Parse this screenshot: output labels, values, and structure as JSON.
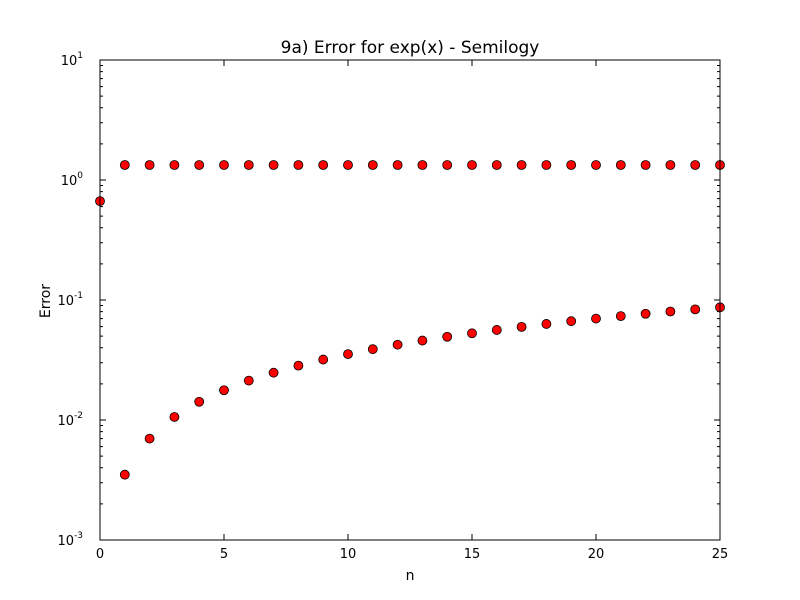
{
  "chart_data": {
    "type": "scatter",
    "title": "9a) Error for exp(x) - Semilogy",
    "xlabel": "n",
    "ylabel": "Error",
    "xlim": [
      0,
      25
    ],
    "ylim": [
      0.001,
      10
    ],
    "yscale": "log",
    "x_ticks": [
      "0",
      "5",
      "10",
      "15",
      "20",
      "25"
    ],
    "y_ticks": [
      {
        "base": "10",
        "exp": "-3"
      },
      {
        "base": "10",
        "exp": "-2"
      },
      {
        "base": "10",
        "exp": "-1"
      },
      {
        "base": "10",
        "exp": "0"
      },
      {
        "base": "10",
        "exp": "1"
      }
    ],
    "grid": false,
    "marker_color": "#ff0000",
    "marker_edge_color": "#000000",
    "series": [
      {
        "x": [
          0,
          1,
          2,
          3,
          4,
          5,
          6,
          7,
          8,
          9,
          10,
          11,
          12,
          13,
          14,
          15,
          16,
          17,
          18,
          19,
          20,
          21,
          22,
          23,
          24,
          25
        ],
        "y": [
          0.6667,
          1.333,
          1.333,
          1.333,
          1.333,
          1.333,
          1.333,
          1.333,
          1.333,
          1.333,
          1.333,
          1.333,
          1.333,
          1.333,
          1.333,
          1.333,
          1.333,
          1.333,
          1.333,
          1.333,
          1.333,
          1.333,
          1.333,
          1.333,
          1.333,
          1.333
        ]
      },
      {
        "x": [
          1,
          2,
          3,
          4,
          5,
          6,
          7,
          8,
          9,
          10,
          11,
          12,
          13,
          14,
          15,
          16,
          17,
          18,
          19,
          20,
          21,
          22,
          23,
          24,
          25
        ],
        "y": [
          0.0035,
          0.007,
          0.0106,
          0.0142,
          0.0177,
          0.0213,
          0.0248,
          0.0284,
          0.0319,
          0.0354,
          0.0389,
          0.0424,
          0.0459,
          0.0494,
          0.0528,
          0.0563,
          0.0597,
          0.0632,
          0.0666,
          0.07,
          0.0734,
          0.0768,
          0.0802,
          0.0835,
          0.0869
        ]
      }
    ]
  }
}
